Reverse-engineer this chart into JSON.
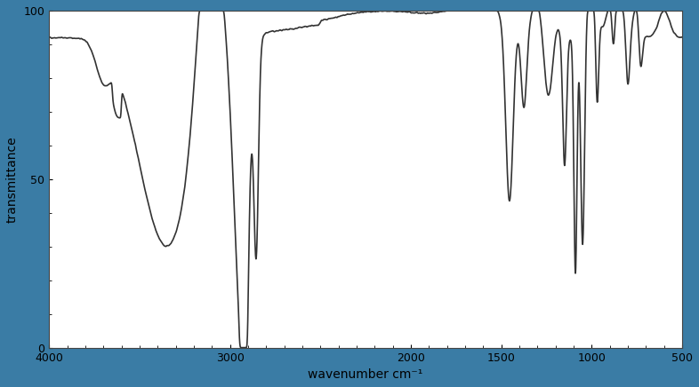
{
  "xlabel": "wavenumber cm⁻¹",
  "ylabel": "transmittance",
  "xlim": [
    4000,
    500
  ],
  "ylim": [
    0,
    100
  ],
  "yticks": [
    0,
    50,
    100
  ],
  "xticks": [
    4000,
    3000,
    2000,
    1500,
    1000,
    500
  ],
  "background_color": "#ffffff",
  "border_color": "#3a7ca5",
  "line_color": "#333333",
  "line_width": 1.2,
  "fig_bg_color": "#3a7ca5"
}
